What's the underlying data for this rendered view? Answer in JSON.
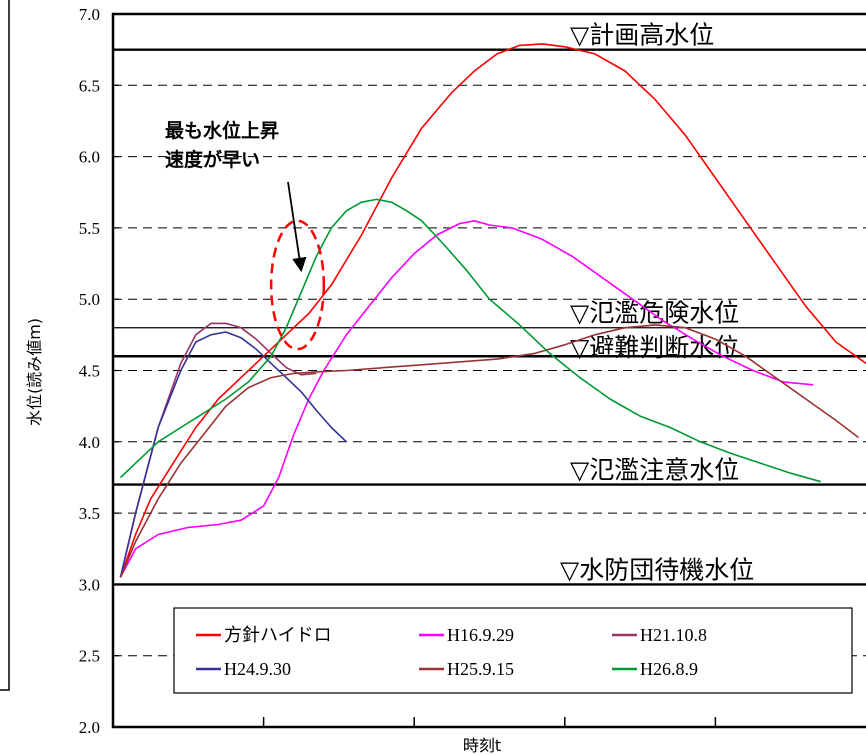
{
  "chart_data": {
    "type": "line",
    "xlabel": "時刻t",
    "ylabel": "水位(読み値m)",
    "ylim": [
      2.0,
      7.0
    ],
    "yticks": [
      "2.0",
      "2.5",
      "3.0",
      "3.5",
      "4.0",
      "4.5",
      "5.0",
      "5.5",
      "6.0",
      "6.5",
      "7.0"
    ],
    "xlim": [
      0,
      100
    ],
    "x_minor_ticks": [
      20,
      40,
      60,
      80
    ],
    "grid": "horizontal dashed at every 0.5 m",
    "reference_levels": [
      {
        "label": "▽計画高水位",
        "value": 6.75
      },
      {
        "label": "▽氾濫危険水位",
        "value": 4.8
      },
      {
        "label": "▽避難判断水位",
        "value": 4.6
      },
      {
        "label": "▽氾濫注意水位",
        "value": 3.7
      },
      {
        "label": "▽水防団待機水位",
        "value": 3.0
      }
    ],
    "annotation": {
      "lines": [
        "最も水位上昇",
        "速度が早い"
      ],
      "arrow_target": [
        25,
        5.2
      ],
      "ellipse_center": [
        24.5,
        5.1
      ],
      "ellipse_radius": [
        3.5,
        0.45
      ],
      "ellipse_color": "#ff0000"
    },
    "legend_position": "bottom",
    "series": [
      {
        "name": "方針ハイドロ",
        "color": "#ff0000",
        "x": [
          1,
          3,
          5,
          8,
          11,
          14,
          17,
          20,
          23,
          26,
          29,
          33,
          37,
          41,
          45,
          48,
          51,
          54,
          57,
          60,
          64,
          68,
          72,
          76,
          80,
          84,
          88,
          92,
          96,
          100
        ],
        "y": [
          3.05,
          3.35,
          3.6,
          3.85,
          4.1,
          4.3,
          4.45,
          4.6,
          4.75,
          4.9,
          5.1,
          5.45,
          5.85,
          6.2,
          6.45,
          6.6,
          6.72,
          6.78,
          6.79,
          6.77,
          6.72,
          6.6,
          6.4,
          6.15,
          5.85,
          5.55,
          5.25,
          4.95,
          4.7,
          4.55
        ]
      },
      {
        "name": "H16.9.29",
        "color": "#ff00ff",
        "x": [
          1,
          3,
          6,
          10,
          14,
          17,
          20,
          22,
          24,
          26,
          28,
          31,
          34,
          37,
          40,
          43,
          46,
          48,
          50,
          53,
          57,
          61,
          65,
          69,
          73,
          77,
          81,
          85,
          89,
          93
        ],
        "y": [
          3.05,
          3.25,
          3.35,
          3.4,
          3.42,
          3.45,
          3.55,
          3.75,
          4.05,
          4.3,
          4.5,
          4.75,
          4.95,
          5.15,
          5.32,
          5.45,
          5.53,
          5.55,
          5.52,
          5.5,
          5.42,
          5.3,
          5.15,
          5.0,
          4.85,
          4.72,
          4.6,
          4.5,
          4.42,
          4.4
        ]
      },
      {
        "name": "H21.10.8",
        "color": "#993366",
        "x": [
          1,
          3,
          6,
          9,
          11,
          13,
          15,
          17,
          19,
          21,
          23,
          25,
          27
        ],
        "y": [
          3.05,
          3.5,
          4.1,
          4.55,
          4.75,
          4.83,
          4.83,
          4.8,
          4.72,
          4.62,
          4.52,
          4.47,
          4.48
        ]
      },
      {
        "name": "H24.9.30",
        "color": "#333399",
        "x": [
          1,
          3,
          6,
          9,
          11,
          13,
          15,
          17,
          19,
          21,
          23,
          25,
          27,
          29,
          31
        ],
        "y": [
          3.05,
          3.5,
          4.1,
          4.5,
          4.7,
          4.75,
          4.77,
          4.73,
          4.65,
          4.55,
          4.45,
          4.35,
          4.22,
          4.1,
          4.0
        ]
      },
      {
        "name": "H25.9.15",
        "color": "#993333",
        "x": [
          1,
          3,
          6,
          9,
          12,
          15,
          18,
          21,
          24,
          27,
          31,
          36,
          41,
          46,
          51,
          56,
          60,
          64,
          68,
          72,
          76,
          80,
          84,
          88,
          92,
          96,
          99
        ],
        "y": [
          3.05,
          3.3,
          3.6,
          3.85,
          4.05,
          4.25,
          4.38,
          4.45,
          4.48,
          4.49,
          4.5,
          4.52,
          4.54,
          4.56,
          4.58,
          4.62,
          4.68,
          4.75,
          4.8,
          4.82,
          4.8,
          4.72,
          4.6,
          4.45,
          4.3,
          4.15,
          4.03
        ]
      },
      {
        "name": "H26.8.9",
        "color": "#009933",
        "x": [
          1,
          3,
          6,
          9,
          12,
          15,
          18,
          21,
          23,
          25,
          27,
          29,
          31,
          33,
          35,
          37,
          39,
          41,
          44,
          47,
          50,
          54,
          58,
          62,
          66,
          70,
          74,
          78,
          82,
          86,
          90,
          94
        ],
        "y": [
          3.75,
          3.85,
          4.0,
          4.1,
          4.2,
          4.3,
          4.42,
          4.6,
          4.8,
          5.05,
          5.3,
          5.5,
          5.62,
          5.68,
          5.7,
          5.68,
          5.62,
          5.55,
          5.38,
          5.2,
          5.0,
          4.82,
          4.62,
          4.45,
          4.3,
          4.18,
          4.1,
          4.0,
          3.92,
          3.85,
          3.78,
          3.72
        ]
      }
    ]
  }
}
